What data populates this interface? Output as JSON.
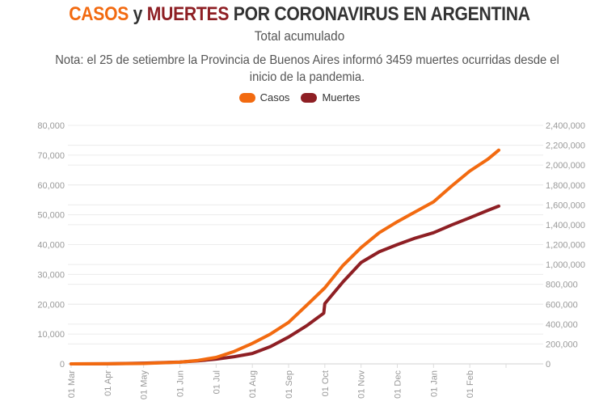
{
  "header": {
    "title_part1": "CASOS",
    "title_part2": " y ",
    "title_part3": "MUERTES",
    "title_part4": " POR CORONAVIRUS EN ARGENTINA",
    "subtitle": "Total acumulado",
    "note": "Nota: el 25 de setiembre la Provincia de Buenos Aires informó 3459 muertes ocurridas desde el inicio de la pandemia."
  },
  "colors": {
    "casos": "#f26a10",
    "muertes": "#8e1f24",
    "grid": "#ececec",
    "axis_text": "#999999"
  },
  "chart_data": {
    "type": "line",
    "title": "CASOS y MUERTES POR CORONAVIRUS EN ARGENTINA",
    "subtitle": "Total acumulado",
    "legend": [
      "Casos",
      "Muertes"
    ],
    "legend_position": "top-center",
    "grid": true,
    "x_ticks": [
      "01 Mar",
      "01 Apr",
      "01 May",
      "01 Jun",
      "01 Jul",
      "01 Aug",
      "01 Sep",
      "01 Oct",
      "01 Nov",
      "01 Dec",
      "01 Jan",
      "01 Feb",
      ""
    ],
    "x_range_months": [
      0,
      12.3
    ],
    "y_left": {
      "label": "Muertes",
      "range": [
        0,
        80000
      ],
      "ticks": [
        "0",
        "10,000",
        "20,000",
        "30,000",
        "40,000",
        "50,000",
        "60,000",
        "70,000",
        "80,000"
      ]
    },
    "y_right": {
      "label": "Casos",
      "range": [
        0,
        2400000
      ],
      "ticks": [
        "0",
        "200,000",
        "400,000",
        "600,000",
        "800,000",
        "1,000,000",
        "1,200,000",
        "1,400,000",
        "1,600,000",
        "1,800,000",
        "2,000,000",
        "2,200,000",
        "2,400,000"
      ]
    },
    "series": [
      {
        "name": "Casos",
        "axis": "right",
        "x_months": [
          0,
          1,
          2,
          3,
          3.5,
          4,
          4.5,
          5,
          5.5,
          6,
          6.5,
          7,
          7.5,
          8,
          8.5,
          9,
          9.5,
          10,
          10.5,
          11,
          11.5,
          11.8
        ],
        "values": [
          0,
          1000,
          4400,
          17000,
          35000,
          65000,
          125000,
          206000,
          300000,
          417000,
          590000,
          765000,
          990000,
          1170000,
          1320000,
          1430000,
          1530000,
          1630000,
          1790000,
          1940000,
          2060000,
          2150000
        ]
      },
      {
        "name": "Muertes",
        "axis": "left",
        "x_months": [
          0,
          1,
          2,
          3,
          3.5,
          4,
          4.5,
          5,
          5.5,
          6,
          6.5,
          6.97,
          7.0,
          7.5,
          8,
          8.5,
          9,
          9.5,
          10,
          10.5,
          11,
          11.5,
          11.8
        ],
        "values": [
          0,
          30,
          250,
          600,
          1000,
          1600,
          2400,
          3500,
          5800,
          9000,
          12800,
          17000,
          20200,
          27500,
          34000,
          37600,
          40000,
          42200,
          44000,
          46600,
          49000,
          51500,
          52900
        ]
      }
    ]
  }
}
